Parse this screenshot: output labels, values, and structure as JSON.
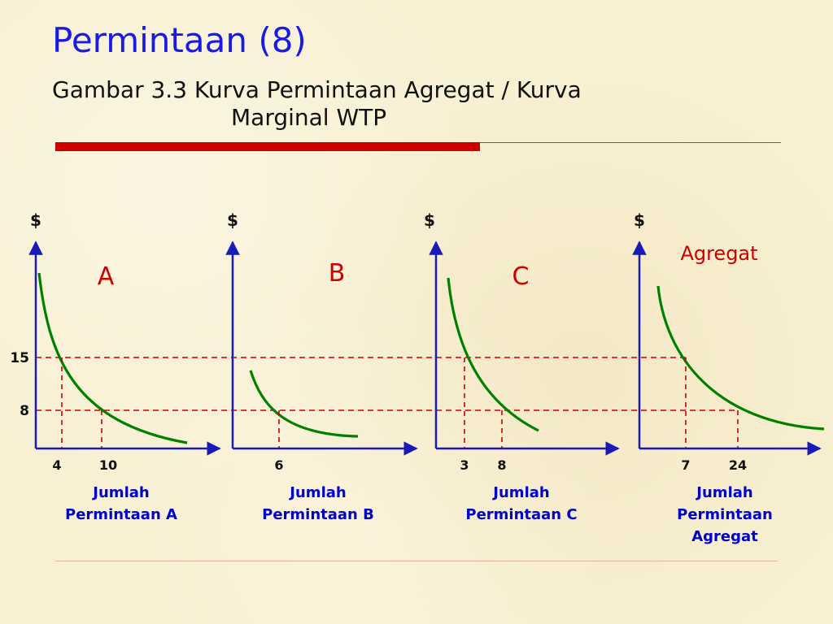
{
  "slide": {
    "title": "Permintaan (8)",
    "subtitle_line1": "Gambar 3.3 Kurva Permintaan Agregat / Kurva",
    "subtitle_line2": "Marginal WTP"
  },
  "colors": {
    "curve": "#008000",
    "guide": "#cc0000",
    "axis": "#1a1ab8",
    "xlabel": "#0000cc",
    "panel_label": "#cc0000",
    "title": "#1a1ae6"
  },
  "chart_data": [
    {
      "type": "line",
      "panel_label": "A",
      "ylabel": "$",
      "xlabel": "Jumlah Permintaan A",
      "xlabel_lines": [
        "Jumlah",
        "Permintaan A"
      ],
      "x_ticks": [
        4,
        10
      ],
      "y_ticks": [
        15,
        8
      ],
      "points": [
        {
          "x": 4,
          "y": 15
        },
        {
          "x": 10,
          "y": 8
        }
      ]
    },
    {
      "type": "line",
      "panel_label": "B",
      "ylabel": "$",
      "xlabel": "Jumlah Permintaan B",
      "xlabel_lines": [
        "Jumlah",
        "Permintaan B"
      ],
      "x_ticks": [
        6
      ],
      "points": [
        {
          "x": 6,
          "y": 8
        }
      ]
    },
    {
      "type": "line",
      "panel_label": "C",
      "ylabel": "$",
      "xlabel": "Jumlah Permintaan C",
      "xlabel_lines": [
        "Jumlah",
        "Permintaan C"
      ],
      "x_ticks": [
        3,
        8
      ],
      "points": [
        {
          "x": 3,
          "y": 15
        },
        {
          "x": 8,
          "y": 8
        }
      ]
    },
    {
      "type": "line",
      "panel_label": "Agregat",
      "ylabel": "$",
      "xlabel": "Jumlah Permintaan Agregat",
      "xlabel_lines": [
        "Jumlah",
        "Permintaan",
        "Agregat"
      ],
      "x_ticks": [
        7,
        24
      ],
      "points": [
        {
          "x": 7,
          "y": 15
        },
        {
          "x": 24,
          "y": 8
        }
      ]
    }
  ]
}
